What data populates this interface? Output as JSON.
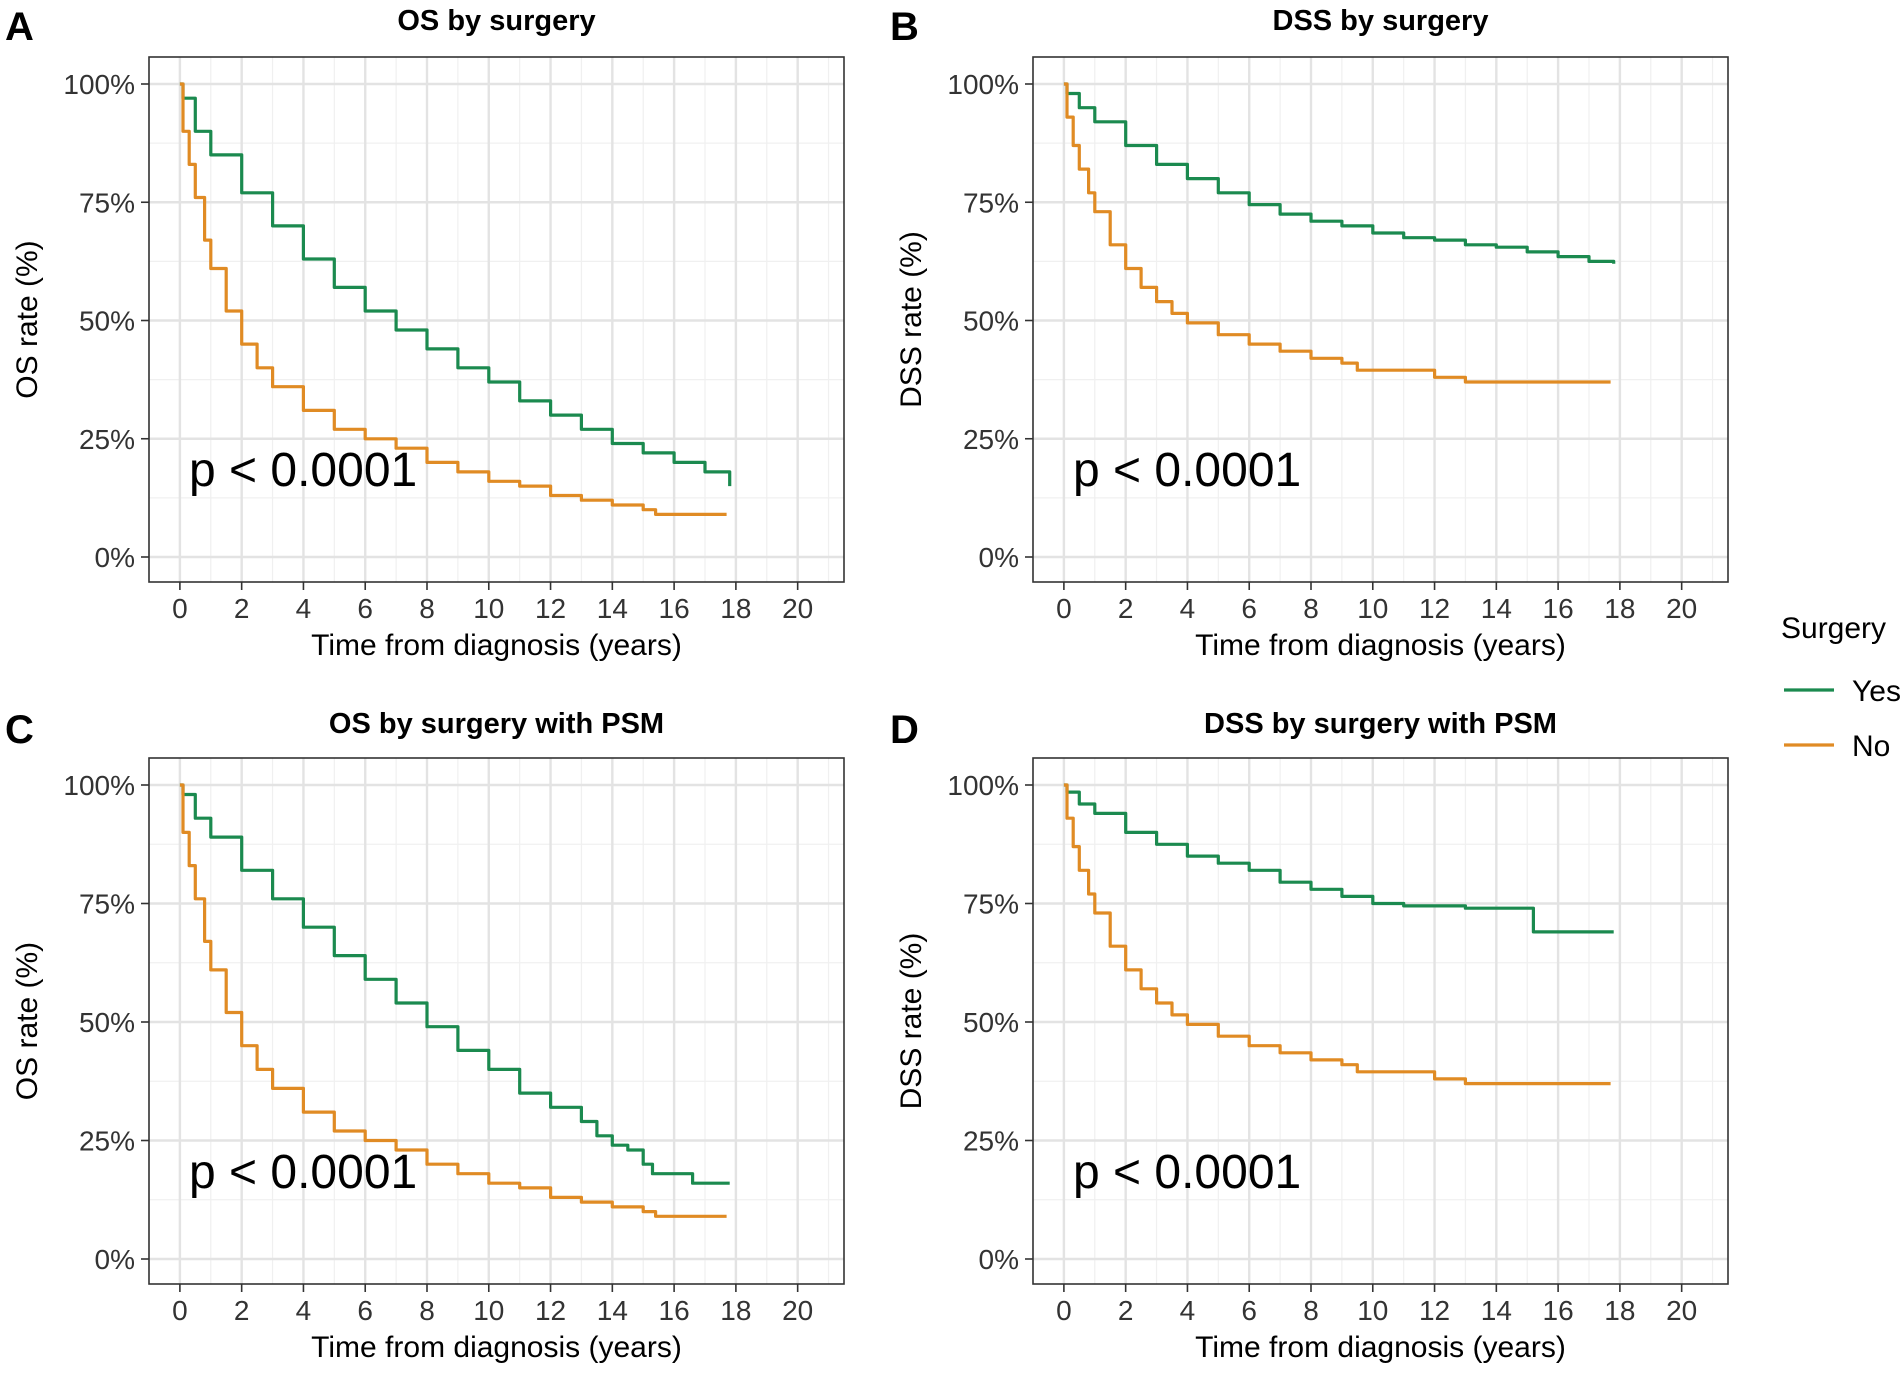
{
  "legend": {
    "title": "Surgery",
    "items": [
      {
        "label": "Yes",
        "color": "#1b8a4f"
      },
      {
        "label": "No",
        "color": "#e08b24"
      }
    ]
  },
  "chart_data": [
    {
      "type": "line",
      "panel": "A",
      "title": "OS by surgery",
      "xlabel": "Time from diagnosis (years)",
      "ylabel": "OS rate (%)",
      "xlim": [
        -1,
        21.5
      ],
      "ylim": [
        0,
        100
      ],
      "xticks": [
        0,
        2,
        4,
        6,
        8,
        10,
        12,
        14,
        16,
        18,
        20
      ],
      "xtick_labels": [
        "0",
        "2",
        "4",
        "6",
        "8",
        "10",
        "12",
        "14",
        "16",
        "18",
        "20"
      ],
      "yticks": [
        0,
        25,
        50,
        75,
        100
      ],
      "ytick_labels": [
        "0%",
        "25%",
        "50%",
        "75%",
        "100%"
      ],
      "annotation": "p < 0.0001",
      "series": [
        {
          "name": "Yes",
          "x": [
            0,
            0.1,
            0.5,
            1,
            2,
            3,
            4,
            5,
            6,
            7,
            8,
            9,
            10,
            11,
            12,
            13,
            14,
            15,
            16,
            17,
            17.8
          ],
          "y": [
            100,
            97,
            90,
            85,
            77,
            70,
            63,
            57,
            52,
            48,
            44,
            40,
            37,
            33,
            30,
            27,
            24,
            22,
            20,
            18,
            15
          ]
        },
        {
          "name": "No",
          "x": [
            0,
            0.1,
            0.3,
            0.5,
            0.8,
            1,
            1.5,
            2,
            2.5,
            3,
            4,
            5,
            6,
            7,
            8,
            9,
            10,
            11,
            12,
            13,
            14,
            15,
            15.4,
            17.7
          ],
          "y": [
            100,
            90,
            83,
            76,
            67,
            61,
            52,
            45,
            40,
            36,
            31,
            27,
            25,
            23,
            20,
            18,
            16,
            15,
            13,
            12,
            11,
            10,
            9,
            9
          ]
        }
      ]
    },
    {
      "type": "line",
      "panel": "B",
      "title": "DSS by surgery",
      "xlabel": "Time from diagnosis (years)",
      "ylabel": "DSS rate (%)",
      "xlim": [
        -1,
        21.5
      ],
      "ylim": [
        0,
        100
      ],
      "xticks": [
        0,
        2,
        4,
        6,
        8,
        10,
        12,
        14,
        16,
        18,
        20
      ],
      "xtick_labels": [
        "0",
        "2",
        "4",
        "6",
        "8",
        "10",
        "12",
        "14",
        "16",
        "18",
        "20"
      ],
      "yticks": [
        0,
        25,
        50,
        75,
        100
      ],
      "ytick_labels": [
        "0%",
        "25%",
        "50%",
        "75%",
        "100%"
      ],
      "annotation": "p < 0.0001",
      "series": [
        {
          "name": "Yes",
          "x": [
            0,
            0.1,
            0.5,
            1,
            2,
            3,
            4,
            5,
            6,
            7,
            8,
            9,
            10,
            11,
            12,
            13,
            14,
            15,
            16,
            17,
            17.8
          ],
          "y": [
            100,
            98,
            95,
            92,
            87,
            83,
            80,
            77,
            74.5,
            72.5,
            71,
            70,
            68.5,
            67.5,
            67,
            66,
            65.5,
            64.5,
            63.5,
            62.5,
            62
          ]
        },
        {
          "name": "No",
          "x": [
            0,
            0.1,
            0.3,
            0.5,
            0.8,
            1,
            1.5,
            2,
            2.5,
            3,
            3.5,
            4,
            5,
            6,
            7,
            8,
            9,
            9.5,
            11,
            12,
            13,
            14,
            15,
            16,
            17.7
          ],
          "y": [
            100,
            93,
            87,
            82,
            77,
            73,
            66,
            61,
            57,
            54,
            51.5,
            49.5,
            47,
            45,
            43.5,
            42,
            41,
            39.5,
            39.5,
            38,
            37,
            37,
            37,
            37,
            37
          ]
        }
      ]
    },
    {
      "type": "line",
      "panel": "C",
      "title": "OS by surgery with PSM",
      "xlabel": "Time from diagnosis (years)",
      "ylabel": "OS rate (%)",
      "xlim": [
        -1,
        21.5
      ],
      "ylim": [
        0,
        100
      ],
      "xticks": [
        0,
        2,
        4,
        6,
        8,
        10,
        12,
        14,
        16,
        18,
        20
      ],
      "xtick_labels": [
        "0",
        "2",
        "4",
        "6",
        "8",
        "10",
        "12",
        "14",
        "16",
        "18",
        "20"
      ],
      "yticks": [
        0,
        25,
        50,
        75,
        100
      ],
      "ytick_labels": [
        "0%",
        "25%",
        "50%",
        "75%",
        "100%"
      ],
      "annotation": "p < 0.0001",
      "series": [
        {
          "name": "Yes",
          "x": [
            0,
            0.1,
            0.5,
            1,
            2,
            3,
            4,
            5,
            6,
            7,
            8,
            9,
            10,
            11,
            12,
            13,
            13.5,
            14,
            14.5,
            15,
            15.3,
            16.6,
            17.8
          ],
          "y": [
            100,
            98,
            93,
            89,
            82,
            76,
            70,
            64,
            59,
            54,
            49,
            44,
            40,
            35,
            32,
            29,
            26,
            24,
            23,
            20,
            18,
            16,
            16
          ]
        },
        {
          "name": "No",
          "x": [
            0,
            0.1,
            0.3,
            0.5,
            0.8,
            1,
            1.5,
            2,
            2.5,
            3,
            4,
            5,
            6,
            7,
            8,
            9,
            10,
            11,
            12,
            13,
            14,
            15,
            15.4,
            17.7
          ],
          "y": [
            100,
            90,
            83,
            76,
            67,
            61,
            52,
            45,
            40,
            36,
            31,
            27,
            25,
            23,
            20,
            18,
            16,
            15,
            13,
            12,
            11,
            10,
            9,
            9
          ]
        }
      ]
    },
    {
      "type": "line",
      "panel": "D",
      "title": "DSS by surgery with PSM",
      "xlabel": "Time from diagnosis (years)",
      "ylabel": "DSS rate (%)",
      "xlim": [
        -1,
        21.5
      ],
      "ylim": [
        0,
        100
      ],
      "xticks": [
        0,
        2,
        4,
        6,
        8,
        10,
        12,
        14,
        16,
        18,
        20
      ],
      "xtick_labels": [
        "0",
        "2",
        "4",
        "6",
        "8",
        "10",
        "12",
        "14",
        "16",
        "18",
        "20"
      ],
      "yticks": [
        0,
        25,
        50,
        75,
        100
      ],
      "ytick_labels": [
        "0%",
        "25%",
        "50%",
        "75%",
        "100%"
      ],
      "annotation": "p < 0.0001",
      "series": [
        {
          "name": "Yes",
          "x": [
            0,
            0.1,
            0.5,
            1,
            2,
            3,
            4,
            5,
            6,
            7,
            8,
            9,
            10,
            11,
            12,
            13,
            14,
            15,
            15.2,
            16,
            17.8
          ],
          "y": [
            100,
            98.5,
            96,
            94,
            90,
            87.5,
            85,
            83.5,
            82,
            79.5,
            78,
            76.5,
            75,
            74.5,
            74.5,
            74,
            74,
            74,
            69,
            69,
            69
          ]
        },
        {
          "name": "No",
          "x": [
            0,
            0.1,
            0.3,
            0.5,
            0.8,
            1,
            1.5,
            2,
            2.5,
            3,
            3.5,
            4,
            5,
            6,
            7,
            8,
            9,
            9.5,
            11,
            12,
            13,
            14,
            15,
            16,
            17.7
          ],
          "y": [
            100,
            93,
            87,
            82,
            77,
            73,
            66,
            61,
            57,
            54,
            51.5,
            49.5,
            47,
            45,
            43.5,
            42,
            41,
            39.5,
            39.5,
            38,
            37,
            37,
            37,
            37,
            37
          ]
        }
      ]
    }
  ]
}
